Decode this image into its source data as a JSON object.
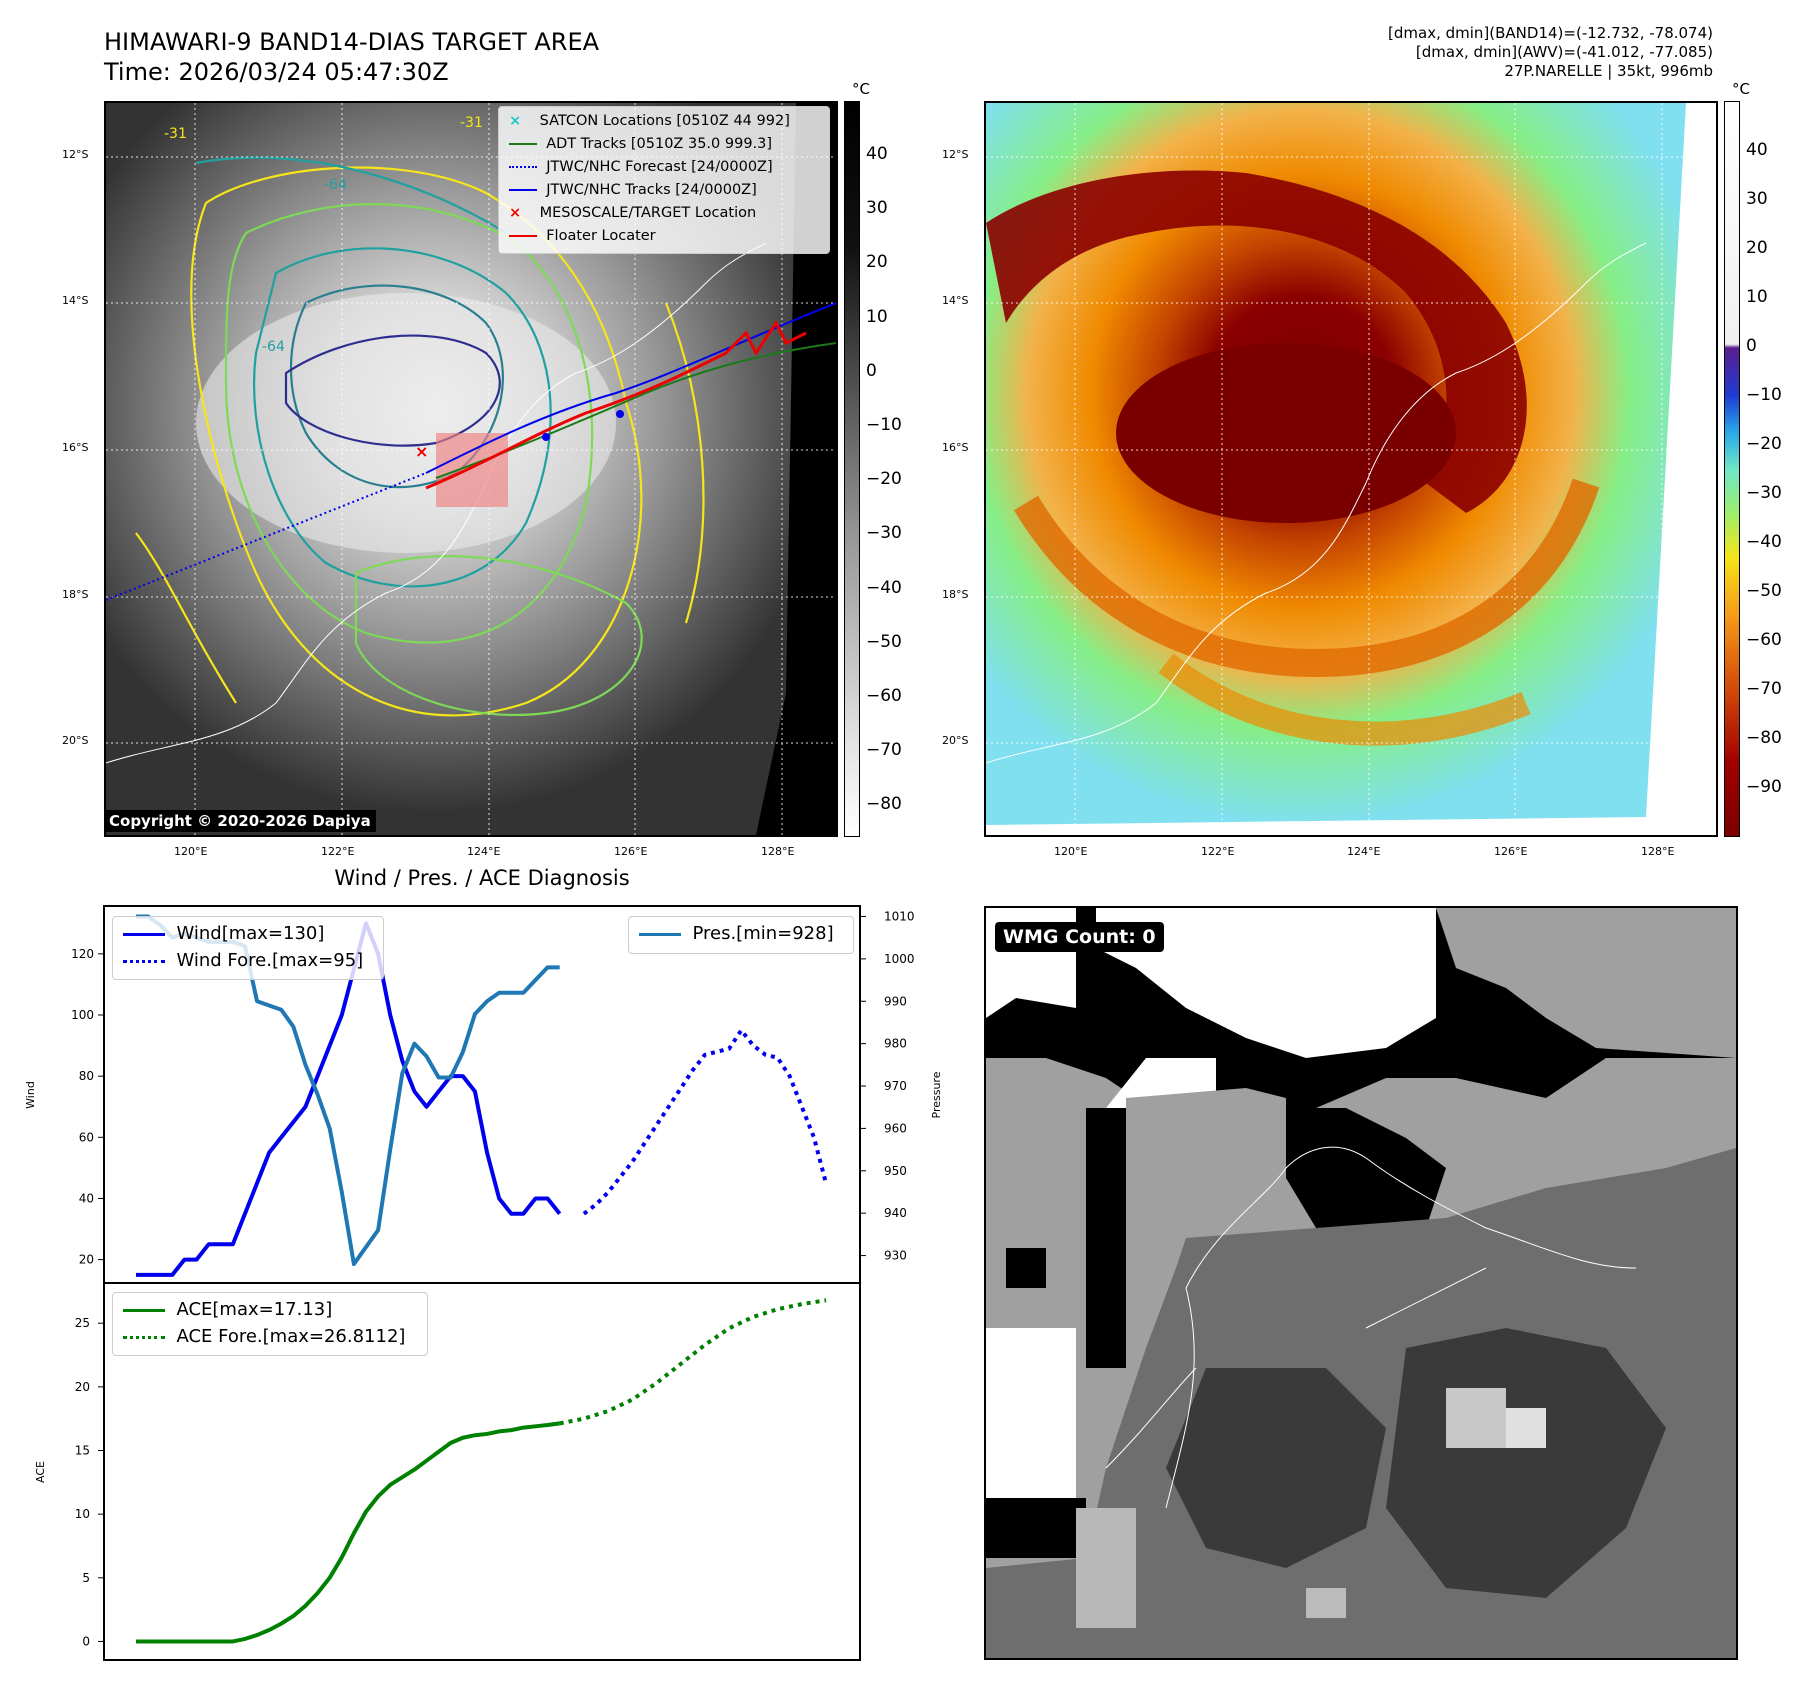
{
  "header": {
    "title_line1": "HIMAWARI-9 BAND14-DIAS TARGET AREA",
    "title_line2": "Time: 2026/03/24 05:47:30Z",
    "info_line1": "[dmax, dmin](BAND14)=(-12.732, -78.074)",
    "info_line2": "[dmax, dmin](AWV)=(-41.012, -77.085)",
    "info_line3": "27P.NARELLE | 35kt, 996mb"
  },
  "map": {
    "lat_labels": [
      "12°S",
      "14°S",
      "16°S",
      "18°S",
      "20°S"
    ],
    "lon_labels": [
      "120°E",
      "122°E",
      "124°E",
      "126°E",
      "128°E"
    ],
    "copyright": "Copyright © 2020-2026 Dapiya",
    "contour_labels": [
      "-31",
      "-64",
      "-64",
      "-31"
    ],
    "legend": [
      {
        "label": "SATCON Locations [0510Z 44 992]",
        "color": "#1ac8c8"
      },
      {
        "label": "ADT Tracks [0510Z 35.0 999.3]",
        "color": "#1a7a1a"
      },
      {
        "label": "JTWC/NHC Forecast [24/0000Z]",
        "color": "#0000ee"
      },
      {
        "label": "JTWC/NHC Tracks [24/0000Z]",
        "color": "#0000ee"
      },
      {
        "label": "MESOSCALE/TARGET Location",
        "color": "#ee0000"
      },
      {
        "label": "Floater Locater",
        "color": "#ee0000"
      }
    ]
  },
  "colorbars": {
    "left": {
      "unit": "°C",
      "ticks": [
        "40",
        "30",
        "20",
        "10",
        "0",
        "−10",
        "−20",
        "−30",
        "−40",
        "−50",
        "−60",
        "−70",
        "−80"
      ]
    },
    "right": {
      "unit": "°C",
      "ticks": [
        "40",
        "30",
        "20",
        "10",
        "0",
        "−10",
        "−20",
        "−30",
        "−40",
        "−50",
        "−60",
        "−70",
        "−80",
        "−90"
      ]
    }
  },
  "wmg": {
    "label": "WMG Count: 0"
  },
  "chart_data": [
    {
      "type": "line",
      "title": "Wind / Pres. / ACE Diagnosis",
      "ylabel": "Wind",
      "y2label": "Pressure",
      "ylim": [
        13,
        135
      ],
      "y2lim": [
        924,
        1012
      ],
      "y_ticks": [
        "20",
        "40",
        "60",
        "80",
        "100",
        "120"
      ],
      "y2_ticks": [
        "930",
        "940",
        "950",
        "960",
        "970",
        "980",
        "990",
        "1000",
        "1010"
      ],
      "legend": [
        "Wind[max=130]",
        "Wind Fore.[max=95]",
        "Pres.[min=928]"
      ],
      "series": [
        {
          "name": "Wind[max=130]",
          "style": "solid",
          "color": "#0000ee",
          "x": [
            0,
            2,
            3,
            4,
            5,
            6,
            7,
            8,
            9,
            10,
            11,
            12,
            13,
            14,
            15,
            16,
            17,
            18,
            19,
            20,
            21,
            22,
            23,
            24,
            25,
            26,
            27,
            28,
            29,
            30,
            31,
            32,
            33,
            34,
            35
          ],
          "values": [
            15,
            15,
            15,
            20,
            20,
            25,
            25,
            25,
            35,
            45,
            55,
            60,
            65,
            70,
            80,
            90,
            100,
            115,
            130,
            120,
            100,
            85,
            75,
            70,
            75,
            80,
            80,
            75,
            55,
            40,
            35,
            35,
            40,
            40,
            35
          ]
        },
        {
          "name": "Wind Fore.[max=95]",
          "style": "dotted",
          "color": "#0000ee",
          "x": [
            37,
            38,
            39,
            40,
            41,
            42,
            43,
            44,
            45,
            46,
            47,
            48,
            49,
            50,
            51,
            52,
            53,
            54,
            55,
            56,
            57
          ],
          "values": [
            35,
            38,
            42,
            47,
            52,
            58,
            64,
            70,
            76,
            82,
            87,
            88,
            89,
            95,
            90,
            87,
            86,
            80,
            70,
            60,
            45
          ]
        },
        {
          "name": "Pres.[min=928]",
          "style": "solid",
          "color": "#1f77b4",
          "axis": "right",
          "x": [
            0,
            1,
            2,
            3,
            4,
            5,
            6,
            7,
            8,
            9,
            10,
            11,
            12,
            13,
            14,
            15,
            16,
            17,
            18,
            19,
            20,
            21,
            22,
            23,
            24,
            25,
            26,
            27,
            28,
            29,
            30,
            31,
            32,
            33,
            34,
            35
          ],
          "values": [
            1010,
            1010,
            1008,
            1005,
            1006,
            1005,
            1004,
            1004,
            1004,
            1003,
            990,
            989,
            988,
            984,
            975,
            968,
            960,
            945,
            928,
            932,
            936,
            955,
            973,
            980,
            977,
            972,
            972,
            978,
            987,
            990,
            992,
            992,
            992,
            995,
            998,
            998
          ]
        }
      ]
    },
    {
      "type": "line",
      "ylabel": "ACE",
      "ylim": [
        -1.3,
        28
      ],
      "y_ticks": [
        "0",
        "5",
        "10",
        "15",
        "20",
        "25"
      ],
      "legend": [
        "ACE[max=17.13]",
        "ACE Fore.[max=26.8112]"
      ],
      "series": [
        {
          "name": "ACE[max=17.13]",
          "style": "solid",
          "color": "#008000",
          "x": [
            0,
            5,
            8,
            9,
            10,
            11,
            12,
            13,
            14,
            15,
            16,
            17,
            18,
            19,
            20,
            21,
            22,
            23,
            24,
            25,
            26,
            27,
            28,
            29,
            30,
            31,
            32,
            33,
            34,
            35
          ],
          "values": [
            0,
            0,
            0,
            0.2,
            0.5,
            0.9,
            1.4,
            2,
            2.8,
            3.8,
            5,
            6.6,
            8.5,
            10.2,
            11.4,
            12.3,
            12.9,
            13.5,
            14.2,
            14.9,
            15.6,
            16,
            16.2,
            16.3,
            16.5,
            16.6,
            16.8,
            16.9,
            17,
            17.13
          ]
        },
        {
          "name": "ACE Fore.[max=26.8112]",
          "style": "dotted",
          "color": "#008000",
          "x": [
            35,
            37,
            39,
            41,
            43,
            45,
            47,
            49,
            51,
            53,
            55,
            57
          ],
          "values": [
            17.13,
            17.5,
            18.1,
            19,
            20.3,
            21.8,
            23.3,
            24.6,
            25.5,
            26.1,
            26.5,
            26.8
          ]
        }
      ]
    }
  ]
}
